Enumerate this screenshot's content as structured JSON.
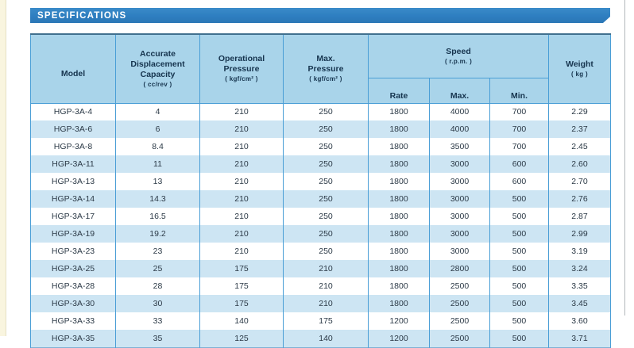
{
  "title_bar": {
    "label": "SPECIFICATIONS"
  },
  "colors": {
    "title_bar_bg": "#2e7ec0",
    "header_bg": "#a9d4ea",
    "alt_row_bg": "#cde5f3",
    "grid_line": "#4a9ed6",
    "header_text": "#16344e",
    "body_text": "#2c3a47",
    "left_strip_bg": "#f9f5df"
  },
  "table": {
    "headers": {
      "model": "Model",
      "capacity_label": "Accurate\nDisplacement\nCapacity",
      "capacity_unit": "( cc/rev )",
      "op_pressure_label": "Operational\nPressure",
      "op_pressure_unit": "( kgf/cm² )",
      "max_pressure_label": "Max.\nPressure",
      "max_pressure_unit": "( kgf/cm² )",
      "speed_label": "Speed",
      "speed_unit": "( r.p.m. )",
      "speed_sub": {
        "rate": "Rate",
        "max": "Max.",
        "min": "Min."
      },
      "weight_label": "Weight",
      "weight_unit": "( kg )"
    },
    "rows": [
      [
        "HGP-3A-4",
        "4",
        "210",
        "250",
        "1800",
        "4000",
        "700",
        "2.29"
      ],
      [
        "HGP-3A-6",
        "6",
        "210",
        "250",
        "1800",
        "4000",
        "700",
        "2.37"
      ],
      [
        "HGP-3A-8",
        "8.4",
        "210",
        "250",
        "1800",
        "3500",
        "700",
        "2.45"
      ],
      [
        "HGP-3A-11",
        "11",
        "210",
        "250",
        "1800",
        "3000",
        "600",
        "2.60"
      ],
      [
        "HGP-3A-13",
        "13",
        "210",
        "250",
        "1800",
        "3000",
        "600",
        "2.70"
      ],
      [
        "HGP-3A-14",
        "14.3",
        "210",
        "250",
        "1800",
        "3000",
        "500",
        "2.76"
      ],
      [
        "HGP-3A-17",
        "16.5",
        "210",
        "250",
        "1800",
        "3000",
        "500",
        "2.87"
      ],
      [
        "HGP-3A-19",
        "19.2",
        "210",
        "250",
        "1800",
        "3000",
        "500",
        "2.99"
      ],
      [
        "HGP-3A-23",
        "23",
        "210",
        "250",
        "1800",
        "3000",
        "500",
        "3.19"
      ],
      [
        "HGP-3A-25",
        "25",
        "175",
        "210",
        "1800",
        "2800",
        "500",
        "3.24"
      ],
      [
        "HGP-3A-28",
        "28",
        "175",
        "210",
        "1800",
        "2500",
        "500",
        "3.35"
      ],
      [
        "HGP-3A-30",
        "30",
        "175",
        "210",
        "1800",
        "2500",
        "500",
        "3.45"
      ],
      [
        "HGP-3A-33",
        "33",
        "140",
        "175",
        "1200",
        "2500",
        "500",
        "3.60"
      ],
      [
        "HGP-3A-35",
        "35",
        "125",
        "140",
        "1200",
        "2500",
        "500",
        "3.71"
      ]
    ]
  }
}
